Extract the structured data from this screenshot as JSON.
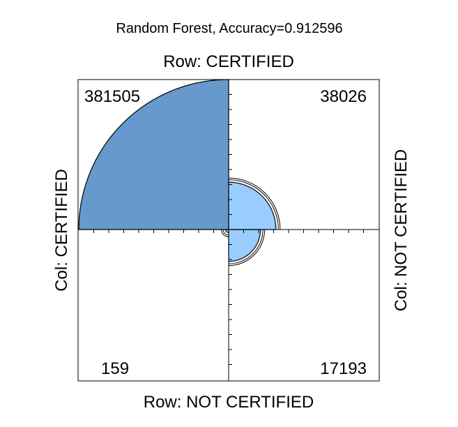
{
  "chart_data": {
    "type": "fourfold",
    "title": "Random Forest, Accuracy=0.912596",
    "row_top_label": "Row: CERTIFIED",
    "row_bottom_label": "Row: NOT CERTIFIED",
    "col_left_label": "Col: CERTIFIED",
    "col_right_label": "Col: NOT CERTIFIED",
    "cells": [
      {
        "quadrant": "top-left",
        "value": 381505,
        "label": "381505"
      },
      {
        "quadrant": "top-right",
        "value": 38026,
        "label": "38026"
      },
      {
        "quadrant": "bottom-left",
        "value": 159,
        "label": "159"
      },
      {
        "quadrant": "bottom-right",
        "value": 17193,
        "label": "17193"
      }
    ],
    "colors": {
      "large_fill": "#6699cc",
      "small_fill": "#99ccff",
      "stroke": "#000000"
    }
  }
}
